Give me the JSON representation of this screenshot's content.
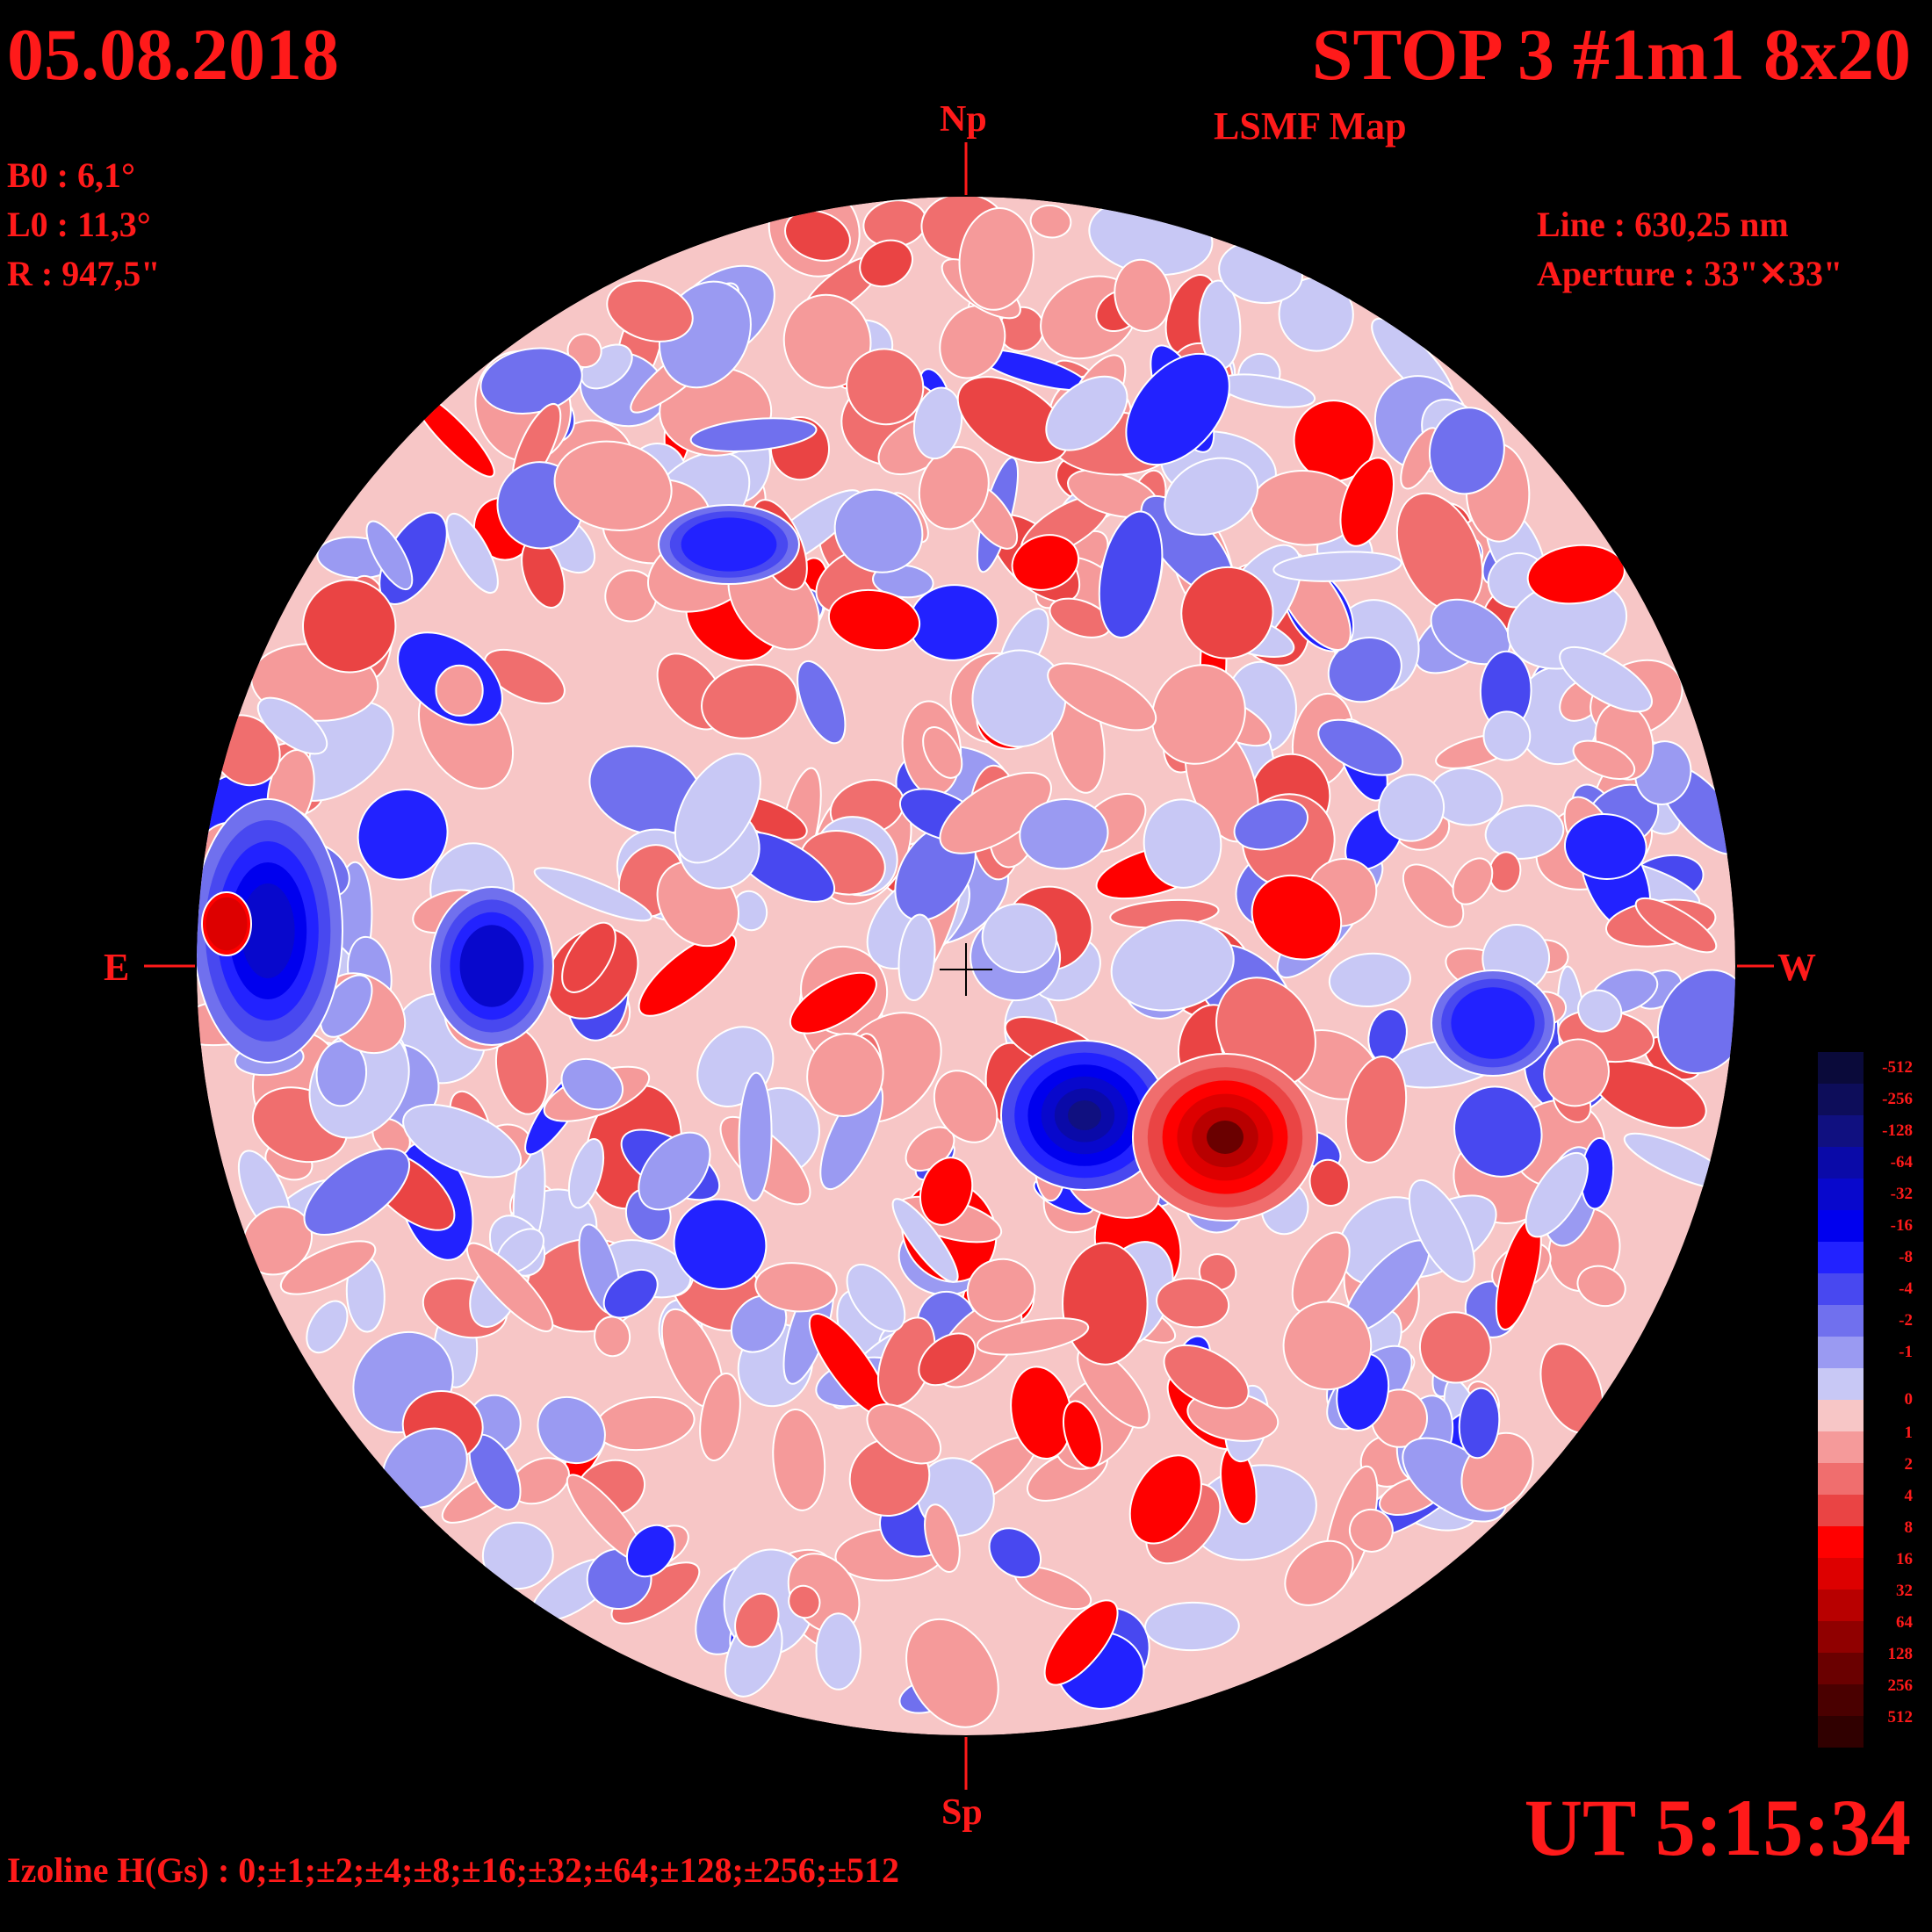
{
  "header": {
    "date": "05.08.2018",
    "instrument": "STOP 3 #1m1 8x20",
    "map_type": "LSMF  Map"
  },
  "params": {
    "b0": "B0 : 6,1°",
    "l0": "L0 : 11,3°",
    "radius": "R  : 947,5\"",
    "line": "Line :  630,25 nm",
    "aperture": "Aperture : 33\"✕33\""
  },
  "directions": {
    "north": "Np",
    "south": "Sp",
    "east": "E",
    "west": "W"
  },
  "time": "UT 5:15:34",
  "isolines": "Izoline H(Gs) : 0;±1;±2;±4;±8;±16;±32;±64;±128;±256;±512",
  "legend": {
    "levels": [
      "-512",
      "-256",
      "-128",
      "-64",
      "-32",
      "-16",
      "-8",
      "-4",
      "-2",
      "-1",
      "0",
      "1",
      "2",
      "4",
      "8",
      "16",
      "32",
      "64",
      "128",
      "256",
      "512"
    ],
    "colors": [
      "#0a0a3a",
      "#0d0d5a",
      "#101080",
      "#0a0aa8",
      "#0808cc",
      "#0000ee",
      "#2222ff",
      "#4848f0",
      "#7070ee",
      "#9a9af2",
      "#c8c8f5",
      "#f7c6c6",
      "#f59a9a",
      "#f06e6e",
      "#ea4444",
      "#ff0000",
      "#dd0000",
      "#b80000",
      "#900000",
      "#6a0000",
      "#4a0000",
      "#300000"
    ]
  },
  "colors": {
    "text": "#ff1a1a",
    "background": "#000000"
  }
}
